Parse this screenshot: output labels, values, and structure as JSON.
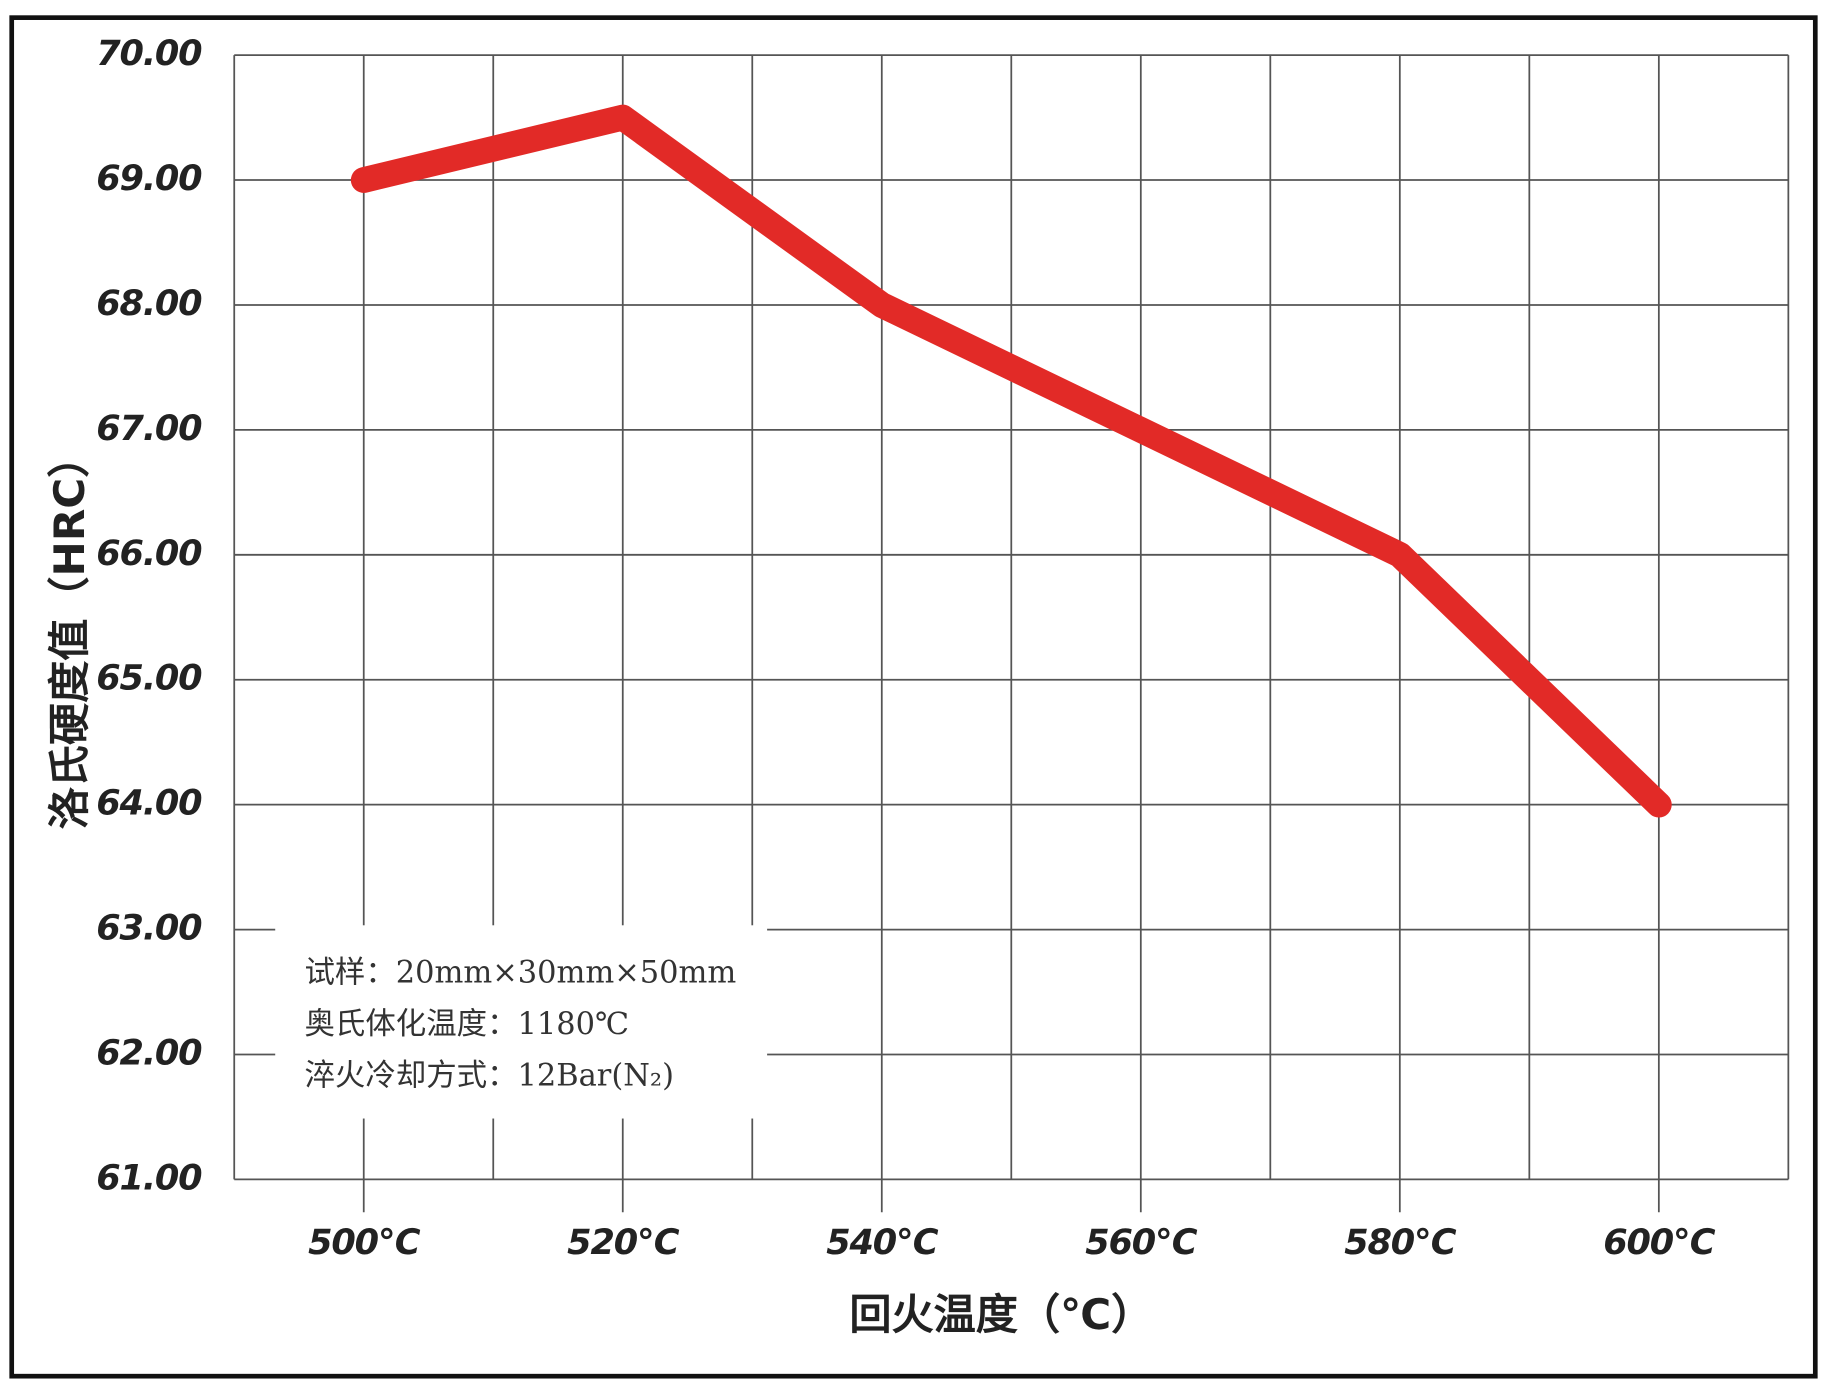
{
  "chart_data": {
    "type": "line",
    "x_label": "回火温度（℃）",
    "y_label": "洛氏硬度值（HRC）",
    "categories": [
      "500℃",
      "520℃",
      "540℃",
      "560℃",
      "580℃",
      "600℃"
    ],
    "series": [
      {
        "color": "#e22a27",
        "values": [
          69,
          69.5,
          68,
          67,
          66,
          64
        ]
      }
    ],
    "ylim": [
      61,
      70
    ],
    "yticks": [
      {
        "value": 61,
        "label": "61.00"
      },
      {
        "value": 62,
        "label": "62.00"
      },
      {
        "value": 63,
        "label": "63.00"
      },
      {
        "value": 64,
        "label": "64.00"
      },
      {
        "value": 65,
        "label": "65.00"
      },
      {
        "value": 66,
        "label": "66.00"
      },
      {
        "value": 67,
        "label": "67.00"
      },
      {
        "value": 68,
        "label": "68.00"
      },
      {
        "value": 69,
        "label": "69.00"
      },
      {
        "value": 70,
        "label": "70.00"
      }
    ],
    "grid": true,
    "annotations": [
      "试样：20mm×30mm×50mm",
      "奥氏体化温度：1180℃",
      "淬火冷却方式：12Bar(N₂)"
    ]
  }
}
